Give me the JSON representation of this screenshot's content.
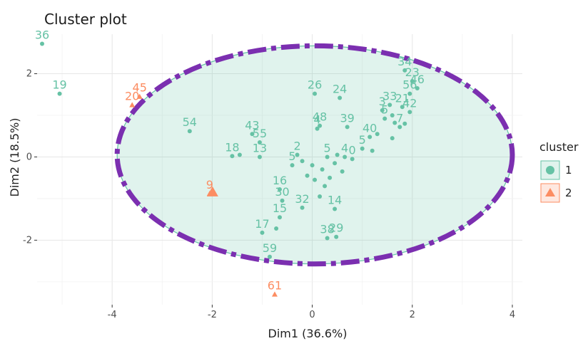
{
  "chart_data": {
    "type": "scatter",
    "title": "Cluster plot",
    "xlabel": "Dim1 (36.6%)",
    "ylabel": "Dim2 (18.5%)",
    "xlim": [
      -5.5,
      4.2
    ],
    "ylim": [
      -3.55,
      2.95
    ],
    "x_ticks": [
      -4,
      -2,
      0,
      2,
      4
    ],
    "y_ticks": [
      -2,
      0,
      2
    ],
    "grid": true,
    "legend_title": "cluster",
    "legend_position": "right",
    "series": [
      {
        "name": "1",
        "marker": "circle",
        "color": "#66C2A5",
        "points": [
          {
            "label": "36",
            "x": -5.4,
            "y": 2.72
          },
          {
            "label": "19",
            "x": -5.05,
            "y": 1.52
          },
          {
            "label": "54",
            "x": -2.45,
            "y": 0.62
          },
          {
            "label": "18",
            "x": -1.6,
            "y": 0.02
          },
          {
            "label": "43",
            "x": -1.2,
            "y": 0.55
          },
          {
            "label": "55",
            "x": -1.05,
            "y": 0.35
          },
          {
            "label": "13",
            "x": -1.05,
            "y": 0.0
          },
          {
            "label": "",
            "x": -1.45,
            "y": 0.05
          },
          {
            "label": "26",
            "x": 0.05,
            "y": 1.52
          },
          {
            "label": "24",
            "x": 0.55,
            "y": 1.42
          },
          {
            "label": "48",
            "x": 0.15,
            "y": 0.75
          },
          {
            "label": "4",
            "x": 0.1,
            "y": 0.68
          },
          {
            "label": "39",
            "x": 0.7,
            "y": 0.72
          },
          {
            "label": "34",
            "x": 1.85,
            "y": 2.08
          },
          {
            "label": "23",
            "x": 2.0,
            "y": 1.82
          },
          {
            "label": "46",
            "x": 2.1,
            "y": 1.65
          },
          {
            "label": "56",
            "x": 1.95,
            "y": 1.52
          },
          {
            "label": "33",
            "x": 1.55,
            "y": 1.25
          },
          {
            "label": "3",
            "x": 1.4,
            "y": 1.12
          },
          {
            "label": "21",
            "x": 1.8,
            "y": 1.2
          },
          {
            "label": "42",
            "x": 1.95,
            "y": 1.08
          },
          {
            "label": "",
            "x": 1.6,
            "y": 1.0
          },
          {
            "label": "5",
            "x": 1.45,
            "y": 0.92
          },
          {
            "label": "",
            "x": 1.65,
            "y": 0.82
          },
          {
            "label": "7",
            "x": 1.75,
            "y": 0.72
          },
          {
            "label": "",
            "x": 1.85,
            "y": 0.8
          },
          {
            "label": "40",
            "x": 1.15,
            "y": 0.48
          },
          {
            "label": "",
            "x": 1.3,
            "y": 0.55
          },
          {
            "label": "",
            "x": 1.6,
            "y": 0.45
          },
          {
            "label": "5",
            "x": 1.0,
            "y": 0.2
          },
          {
            "label": "",
            "x": 1.2,
            "y": 0.15
          },
          {
            "label": "2",
            "x": -0.3,
            "y": 0.05
          },
          {
            "label": "",
            "x": -0.2,
            "y": -0.1
          },
          {
            "label": "5",
            "x": -0.4,
            "y": -0.2
          },
          {
            "label": "",
            "x": 0.0,
            "y": -0.2
          },
          {
            "label": "",
            "x": 0.2,
            "y": -0.3
          },
          {
            "label": "5",
            "x": 0.3,
            "y": 0.0
          },
          {
            "label": "",
            "x": 0.5,
            "y": 0.05
          },
          {
            "label": "4",
            "x": 0.65,
            "y": 0.0
          },
          {
            "label": "0",
            "x": 0.8,
            "y": -0.05
          },
          {
            "label": "",
            "x": 0.45,
            "y": -0.15
          },
          {
            "label": "",
            "x": -0.1,
            "y": -0.45
          },
          {
            "label": "",
            "x": 0.05,
            "y": -0.55
          },
          {
            "label": "",
            "x": 0.35,
            "y": -0.5
          },
          {
            "label": "",
            "x": 0.25,
            "y": -0.7
          },
          {
            "label": "",
            "x": 0.6,
            "y": -0.35
          },
          {
            "label": "",
            "x": 0.15,
            "y": -0.95
          },
          {
            "label": "16",
            "x": -0.65,
            "y": -0.78
          },
          {
            "label": "30",
            "x": -0.6,
            "y": -1.05
          },
          {
            "label": "32",
            "x": -0.2,
            "y": -1.22
          },
          {
            "label": "14",
            "x": 0.45,
            "y": -1.25
          },
          {
            "label": "15",
            "x": -0.65,
            "y": -1.45
          },
          {
            "label": "17",
            "x": -1.0,
            "y": -1.82
          },
          {
            "label": "",
            "x": -0.72,
            "y": -1.72
          },
          {
            "label": "38",
            "x": 0.3,
            "y": -1.95
          },
          {
            "label": "29",
            "x": 0.48,
            "y": -1.92
          },
          {
            "label": "59",
            "x": -0.85,
            "y": -2.4
          }
        ]
      },
      {
        "name": "2",
        "marker": "triangle",
        "color": "#FC8D62",
        "points": [
          {
            "label": "45",
            "x": -3.45,
            "y": 1.45
          },
          {
            "label": "20",
            "x": -3.6,
            "y": 1.25
          },
          {
            "label": "9",
            "x": -2.05,
            "y": -0.88
          },
          {
            "label": "61",
            "x": -0.75,
            "y": -3.3
          }
        ]
      }
    ],
    "ellipse": {
      "cluster": "1",
      "center": [
        0.05,
        0.05
      ],
      "rx": 3.95,
      "ry": 2.62,
      "fill": "#66C2A5",
      "outline_color": "#7B2FB0"
    }
  }
}
